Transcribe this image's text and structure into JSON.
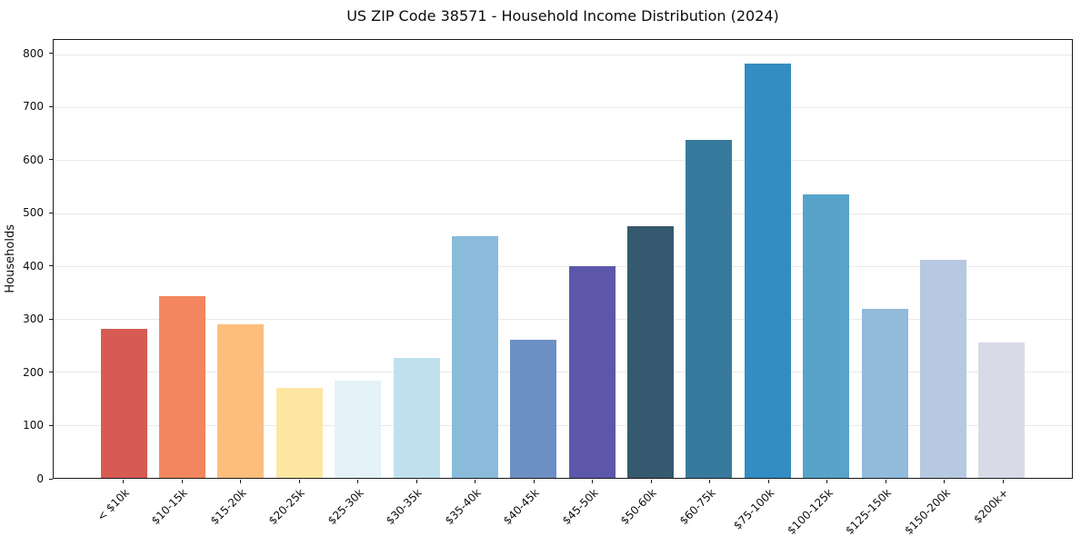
{
  "title": "US ZIP Code 38571 - Household Income Distribution (2024)",
  "chart_data": {
    "type": "bar",
    "title": "US ZIP Code 38571 - Household Income Distribution (2024)",
    "xlabel": "",
    "ylabel": "Households",
    "ylim": [
      0,
      827
    ],
    "yticks": [
      0,
      100,
      200,
      300,
      400,
      500,
      600,
      700,
      800
    ],
    "grid": "horizontal-light",
    "legend": "none",
    "categories": [
      "< $10k",
      "$10-15k",
      "$15-20k",
      "$20-25k",
      "$25-30k",
      "$30-35k",
      "$35-40k",
      "$40-45k",
      "$45-50k",
      "$50-60k",
      "$60-75k",
      "$75-100k",
      "$100-125k",
      "$125-150k",
      "$150-200k",
      "$200k+"
    ],
    "values": [
      281,
      343,
      290,
      170,
      184,
      226,
      457,
      260,
      399,
      476,
      638,
      783,
      536,
      319,
      411,
      255
    ],
    "bar_colors": [
      "#d75b52",
      "#f3865f",
      "#fcbe7d",
      "#fde6a0",
      "#e4f2f8",
      "#c0e0ed",
      "#8abbda",
      "#6c90c4",
      "#5c57aa",
      "#35596f",
      "#387a9d",
      "#338cc2",
      "#57a3c9",
      "#91badb",
      "#b6c9e1",
      "#d9dae8"
    ]
  },
  "colors": {
    "background": "#ffffff",
    "gridline": "#e9e9e9",
    "spine": "#1a1a1a",
    "text": "#0d0d0d"
  }
}
